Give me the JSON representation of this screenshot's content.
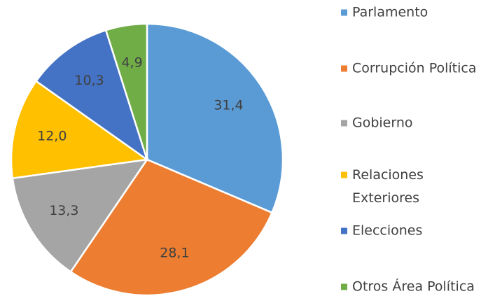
{
  "chart_data": {
    "type": "pie",
    "categories": [
      "Parlamento",
      "Corrupción Política",
      "Gobierno",
      "Relaciones Exteriores",
      "Elecciones",
      "Otros Área Política"
    ],
    "values": [
      31.4,
      28.1,
      13.3,
      12.0,
      10.3,
      4.9
    ],
    "value_labels": [
      "31,4",
      "28,1",
      "13,3",
      "12,0",
      "10,3",
      "4,9"
    ],
    "colors": [
      "#5b9bd5",
      "#ed7d31",
      "#a5a5a5",
      "#ffc000",
      "#4472c4",
      "#70ad47"
    ],
    "legend": "right"
  }
}
